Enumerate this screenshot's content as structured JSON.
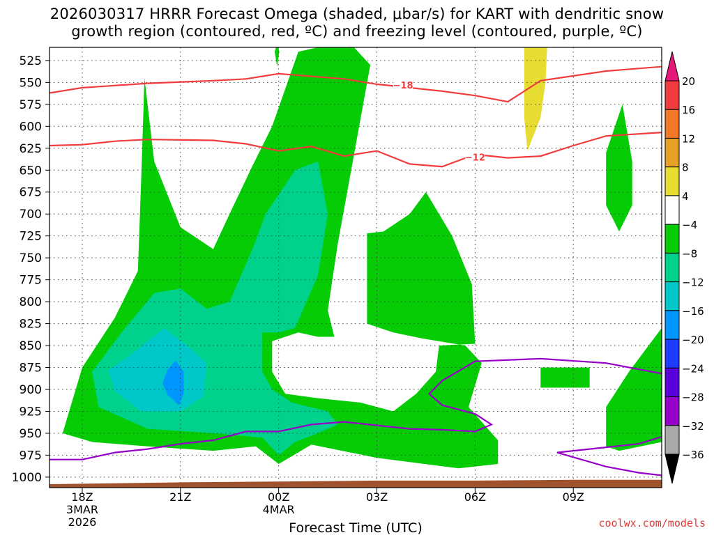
{
  "title_line1": "2026030317 HRRR Forecast Omega (shaded, μbar/s) for KART with dendritic snow",
  "title_line2": "growth region (contoured, red, ºC) and freezing level (contoured, purple, ºC)",
  "credit": "coolwx.com/models",
  "colors": {
    "green_light": "#05cc05",
    "green_mid": "#00d28c",
    "teal": "#00c8c8",
    "blue_light": "#0096ff",
    "yellow": "#e6dc32",
    "red_line": "#f03c3c",
    "purple_line": "#9600c8",
    "terrain": "#a0522d"
  },
  "chart_data": {
    "type": "heatmap",
    "xlabel": "Forecast Time (UTC)",
    "x_ticks": [
      {
        "label": "18Z",
        "sub": [
          "3MAR",
          "2026"
        ]
      },
      {
        "label": "21Z",
        "sub": []
      },
      {
        "label": "00Z",
        "sub": [
          "4MAR"
        ]
      },
      {
        "label": "03Z",
        "sub": []
      },
      {
        "label": "06Z",
        "sub": []
      },
      {
        "label": "09Z",
        "sub": []
      }
    ],
    "x_hours": [
      0,
      3,
      6,
      9,
      12,
      15
    ],
    "x_range_hours": [
      -1,
      17.7
    ],
    "y_ticks": [
      525,
      550,
      575,
      600,
      625,
      650,
      675,
      700,
      725,
      750,
      775,
      800,
      825,
      850,
      875,
      900,
      925,
      950,
      975,
      1000
    ],
    "y_range_hpa": [
      510,
      1012
    ],
    "grid": true,
    "colorbar": {
      "labels": [
        "20",
        "16",
        "12",
        "8",
        "4",
        "−4",
        "−8",
        "−12",
        "−16",
        "−20",
        "−24",
        "−28",
        "−32",
        "−36"
      ],
      "colors": [
        "#f03c3c",
        "#f07828",
        "#e6a028",
        "#e6dc32",
        "#ffffff",
        "#05cc05",
        "#00d28c",
        "#00c8c8",
        "#0096ff",
        "#1e3cff",
        "#5a00dc",
        "#9600c8",
        "#aaaaaa"
      ],
      "top_arrow_color": "#e6197a",
      "bottom_arrow_color": "#000000"
    },
    "contour_labels": [
      {
        "text": "−18",
        "hour": 9.8,
        "hpa": 553
      },
      {
        "text": "−12",
        "hour": 12.0,
        "hpa": 635
      }
    ],
    "isotherm_minus18": [
      [
        -1,
        562
      ],
      [
        0,
        556
      ],
      [
        2,
        551
      ],
      [
        4,
        548
      ],
      [
        5,
        546
      ],
      [
        6,
        540
      ],
      [
        8,
        546
      ],
      [
        9,
        552
      ],
      [
        11,
        560
      ],
      [
        12,
        565
      ],
      [
        13,
        572
      ],
      [
        14,
        548
      ],
      [
        16,
        537
      ],
      [
        17.7,
        532
      ]
    ],
    "isotherm_minus12": [
      [
        -1,
        622
      ],
      [
        0,
        621
      ],
      [
        1,
        617
      ],
      [
        2,
        615
      ],
      [
        4,
        616
      ],
      [
        5,
        620
      ],
      [
        6,
        628
      ],
      [
        7,
        623
      ],
      [
        8,
        634
      ],
      [
        9,
        628
      ],
      [
        10,
        643
      ],
      [
        11,
        646
      ],
      [
        12,
        632
      ],
      [
        13,
        636
      ],
      [
        14,
        634
      ],
      [
        15,
        622
      ],
      [
        16,
        611
      ],
      [
        17.7,
        607
      ]
    ],
    "freezing_level_main": [
      [
        -1,
        980
      ],
      [
        0,
        980
      ],
      [
        1,
        972
      ],
      [
        2,
        968
      ],
      [
        3,
        962
      ],
      [
        4,
        958
      ],
      [
        5,
        948
      ],
      [
        6,
        948
      ],
      [
        7,
        940
      ],
      [
        8,
        937
      ],
      [
        9,
        941
      ],
      [
        10,
        945
      ],
      [
        11,
        946
      ],
      [
        12,
        948
      ],
      [
        12.5,
        940
      ],
      [
        12,
        928
      ],
      [
        11,
        918
      ],
      [
        10.6,
        905
      ],
      [
        11,
        890
      ],
      [
        12,
        868
      ],
      [
        14,
        865
      ],
      [
        16,
        870
      ],
      [
        17.7,
        882
      ]
    ],
    "freezing_level_east": [
      [
        14.5,
        972
      ],
      [
        16,
        966
      ],
      [
        17,
        962
      ],
      [
        17.7,
        954
      ]
    ],
    "freezing_level_lower": [
      [
        14.5,
        972
      ],
      [
        16,
        988
      ],
      [
        17,
        995
      ],
      [
        17.7,
        998
      ]
    ],
    "omega_regions": [
      {
        "level": "-4",
        "points": [
          [
            -0.6,
            950
          ],
          [
            0,
            875
          ],
          [
            1,
            818
          ],
          [
            1.7,
            765
          ],
          [
            1.8,
            660
          ],
          [
            1.9,
            545
          ],
          [
            2.2,
            640
          ],
          [
            3,
            715
          ],
          [
            4,
            740
          ],
          [
            4.5,
            700
          ],
          [
            5.2,
            645
          ],
          [
            5.8,
            600
          ],
          [
            6.6,
            515
          ],
          [
            7.2,
            510
          ],
          [
            8.3,
            510
          ],
          [
            8.8,
            530
          ],
          [
            7.8,
            735
          ],
          [
            7.5,
            810
          ],
          [
            7.7,
            840
          ],
          [
            7.2,
            840
          ],
          [
            6.6,
            835
          ],
          [
            5.8,
            845
          ],
          [
            5.8,
            880
          ],
          [
            6.2,
            905
          ],
          [
            7.2,
            910
          ],
          [
            8.5,
            915
          ],
          [
            9.5,
            925
          ],
          [
            10.2,
            905
          ],
          [
            10.8,
            880
          ],
          [
            10.9,
            850
          ],
          [
            12.0,
            848
          ],
          [
            11.9,
            780
          ],
          [
            11.3,
            725
          ],
          [
            10.5,
            675
          ],
          [
            10.0,
            700
          ],
          [
            9.2,
            720
          ],
          [
            8.7,
            722
          ],
          [
            8.7,
            825
          ],
          [
            9.5,
            835
          ],
          [
            10.4,
            842
          ],
          [
            11.7,
            850
          ],
          [
            12.2,
            870
          ],
          [
            11.8,
            920
          ],
          [
            12.7,
            958
          ],
          [
            12.7,
            985
          ],
          [
            11.5,
            990
          ],
          [
            9.0,
            978
          ],
          [
            7.0,
            963
          ],
          [
            6.0,
            985
          ],
          [
            5.3,
            965
          ],
          [
            4.0,
            970
          ],
          [
            2.0,
            965
          ],
          [
            0.3,
            960
          ]
        ]
      },
      {
        "level": "-8",
        "points": [
          [
            0.3,
            880
          ],
          [
            1.2,
            835
          ],
          [
            2.2,
            790
          ],
          [
            3.0,
            785
          ],
          [
            3.8,
            808
          ],
          [
            4.5,
            800
          ],
          [
            5.2,
            740
          ],
          [
            5.6,
            700
          ],
          [
            6.5,
            650
          ],
          [
            7.2,
            640
          ],
          [
            7.5,
            700
          ],
          [
            7.2,
            770
          ],
          [
            6.5,
            830
          ],
          [
            6.0,
            835
          ],
          [
            5.5,
            835
          ],
          [
            5.5,
            880
          ],
          [
            5.8,
            900
          ],
          [
            6.4,
            915
          ],
          [
            7.5,
            925
          ],
          [
            7.8,
            940
          ],
          [
            7.2,
            950
          ],
          [
            6.5,
            960
          ],
          [
            6.0,
            975
          ],
          [
            5.5,
            955
          ],
          [
            4.0,
            950
          ],
          [
            2.0,
            945
          ],
          [
            0.5,
            920
          ]
        ]
      },
      {
        "level": "-12",
        "points": [
          [
            0.8,
            878
          ],
          [
            1.5,
            860
          ],
          [
            2.5,
            830
          ],
          [
            3.2,
            850
          ],
          [
            3.8,
            870
          ],
          [
            3.7,
            908
          ],
          [
            3.0,
            925
          ],
          [
            1.8,
            925
          ],
          [
            1.0,
            902
          ]
        ]
      },
      {
        "level": "-16",
        "points": [
          [
            2.6,
            878
          ],
          [
            2.85,
            867
          ],
          [
            3.1,
            880
          ],
          [
            3.1,
            905
          ],
          [
            2.95,
            918
          ],
          [
            2.6,
            906
          ],
          [
            2.45,
            893
          ]
        ]
      },
      {
        "level": "-4",
        "points": [
          [
            16.5,
            575
          ],
          [
            16.8,
            640
          ],
          [
            16.8,
            690
          ],
          [
            16.4,
            720
          ],
          [
            16.0,
            690
          ],
          [
            16.0,
            630
          ]
        ]
      },
      {
        "level": "-4",
        "points": [
          [
            17.7,
            830
          ],
          [
            17.3,
            850
          ],
          [
            16.7,
            880
          ],
          [
            16.0,
            920
          ],
          [
            16.0,
            965
          ],
          [
            16.4,
            970
          ],
          [
            17.7,
            960
          ]
        ]
      },
      {
        "level": "-4",
        "points": [
          [
            14.0,
            875
          ],
          [
            15.5,
            875
          ],
          [
            15.5,
            898
          ],
          [
            14.0,
            898
          ]
        ]
      },
      {
        "level": "-4",
        "points": [
          [
            5.95,
            505
          ],
          [
            6.02,
            515
          ],
          [
            5.95,
            532
          ],
          [
            5.88,
            515
          ]
        ]
      }
    ],
    "omega_positive_regions": [
      {
        "level": "4",
        "points": [
          [
            13.5,
            510
          ],
          [
            14.2,
            510
          ],
          [
            14.15,
            550
          ],
          [
            14.0,
            590
          ],
          [
            13.6,
            628
          ],
          [
            13.5,
            590
          ],
          [
            13.5,
            550
          ]
        ]
      }
    ],
    "terrain_top": [
      [
        -1,
        1008
      ],
      [
        3,
        1006
      ],
      [
        6,
        1005
      ],
      [
        9,
        1004
      ],
      [
        12,
        1004
      ],
      [
        15,
        1003
      ],
      [
        17.7,
        1003
      ]
    ]
  }
}
